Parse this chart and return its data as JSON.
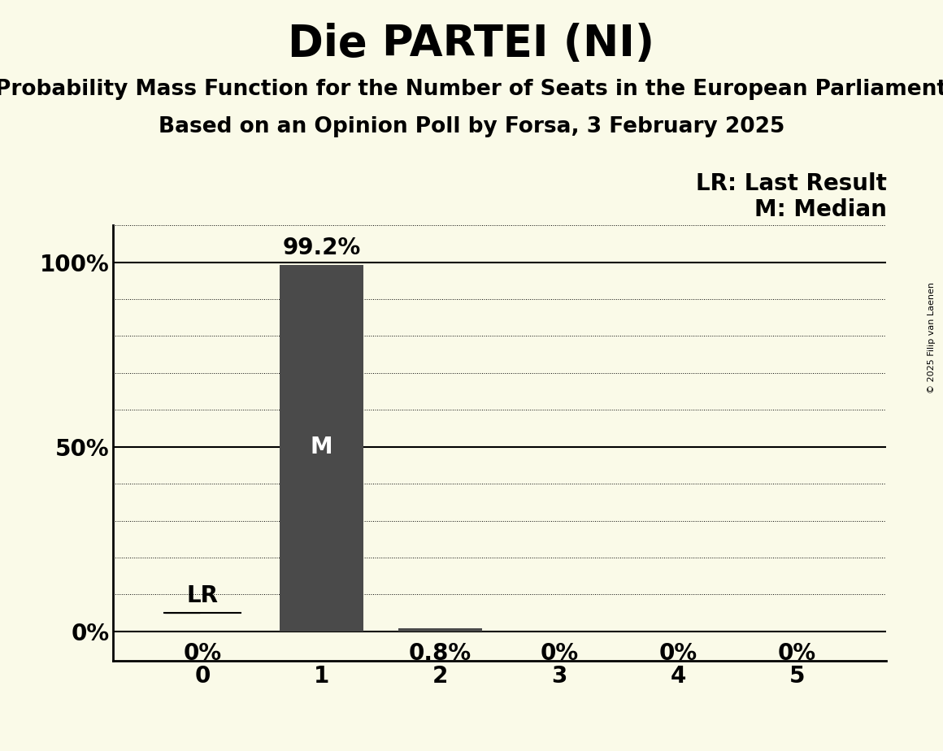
{
  "title": "Die PARTEI (NI)",
  "subtitle1": "Probability Mass Function for the Number of Seats in the European Parliament",
  "subtitle2": "Based on an Opinion Poll by Forsa, 3 February 2025",
  "copyright": "© 2025 Filip van Laenen",
  "seats": [
    0,
    1,
    2,
    3,
    4,
    5
  ],
  "probabilities": [
    0.0,
    0.992,
    0.008,
    0.0,
    0.0,
    0.0
  ],
  "bar_color": "#4a4a4a",
  "background_color": "#fafae8",
  "median": 1,
  "last_result": 0,
  "label_fontsize": 20,
  "title_fontsize": 38,
  "subtitle_fontsize": 19,
  "ytick_labels": [
    "0%",
    "50%",
    "100%"
  ],
  "ytick_values": [
    0.0,
    0.5,
    1.0
  ],
  "legend_lr": "LR: Last Result",
  "legend_m": "M: Median",
  "bar_width": 0.7,
  "xlim": [
    -0.75,
    5.75
  ],
  "ylim": [
    -0.08,
    1.1
  ]
}
